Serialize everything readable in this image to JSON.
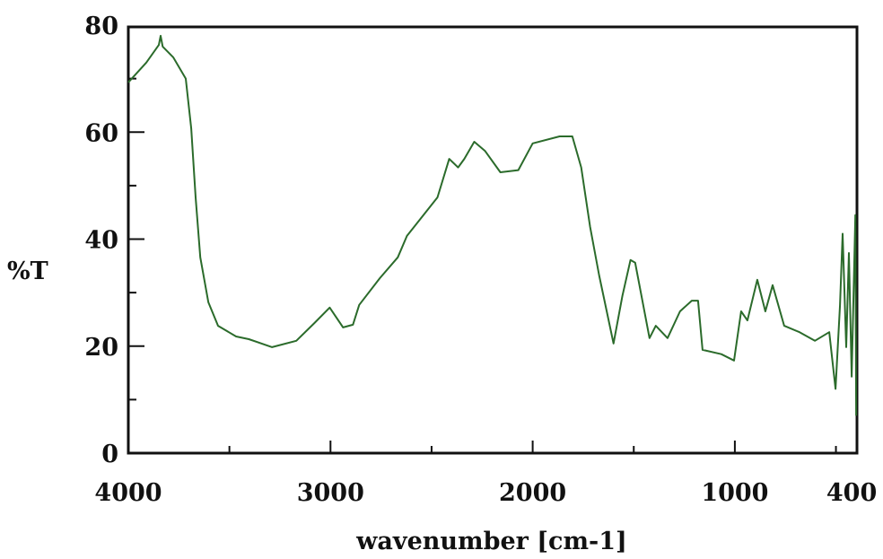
{
  "chart_data": {
    "type": "line",
    "title": "",
    "xlabel": "wavenumber [cm-1]",
    "ylabel": "%T",
    "xlim": [
      4000,
      400
    ],
    "ylim": [
      0,
      80
    ],
    "x_reversed": true,
    "grid": false,
    "x_ticks": [
      4000,
      3000,
      2000,
      1000,
      400
    ],
    "x_tick_labels": [
      "4000",
      "3000",
      "2000",
      "1000",
      "400"
    ],
    "x_minor_ticks": [
      3500,
      2500,
      1500,
      500
    ],
    "y_ticks": [
      0,
      20,
      40,
      60,
      80
    ],
    "y_tick_labels": [
      "0",
      "20",
      "40",
      "60",
      "80"
    ],
    "y_minor_ticks": [
      10,
      30,
      50,
      70
    ],
    "line_color": "#2b6b2b",
    "series": [
      {
        "x": [
          4000,
          3911,
          3849,
          3840,
          3830,
          3778,
          3716,
          3689,
          3667,
          3644,
          3604,
          3556,
          3467,
          3404,
          3289,
          3169,
          3080,
          3004,
          2938,
          2889,
          2858,
          2756,
          2667,
          2622,
          2471,
          2413,
          2369,
          2338,
          2289,
          2236,
          2160,
          2071,
          2000,
          1867,
          1804,
          1760,
          1716,
          1671,
          1600,
          1556,
          1516,
          1493,
          1422,
          1391,
          1333,
          1271,
          1213,
          1182,
          1160,
          1067,
          1004,
          969,
          938,
          889,
          849,
          813,
          756,
          680,
          604,
          533,
          502,
          480,
          467,
          449,
          436,
          422,
          404,
          400
        ],
        "y": [
          69.3,
          73,
          76.3,
          78,
          76,
          74,
          70,
          60.7,
          47.8,
          36.6,
          28.2,
          23.8,
          21.8,
          21.3,
          19.8,
          21,
          24.3,
          27.2,
          23.5,
          24,
          27.7,
          32.7,
          36.6,
          40.6,
          47.8,
          55,
          53.4,
          55,
          58.2,
          56.5,
          52.5,
          52.9,
          57.9,
          59.2,
          59.2,
          53.4,
          42.3,
          33.2,
          20.5,
          29.4,
          36.1,
          35.6,
          21.5,
          23.8,
          21.5,
          26.5,
          28.5,
          28.5,
          19.3,
          18.5,
          17.3,
          26.5,
          24.8,
          32.4,
          26.5,
          31.4,
          23.8,
          22.6,
          21,
          22.6,
          12,
          27.7,
          41,
          19.8,
          37.4,
          14.3,
          44.5,
          7
        ]
      }
    ]
  }
}
